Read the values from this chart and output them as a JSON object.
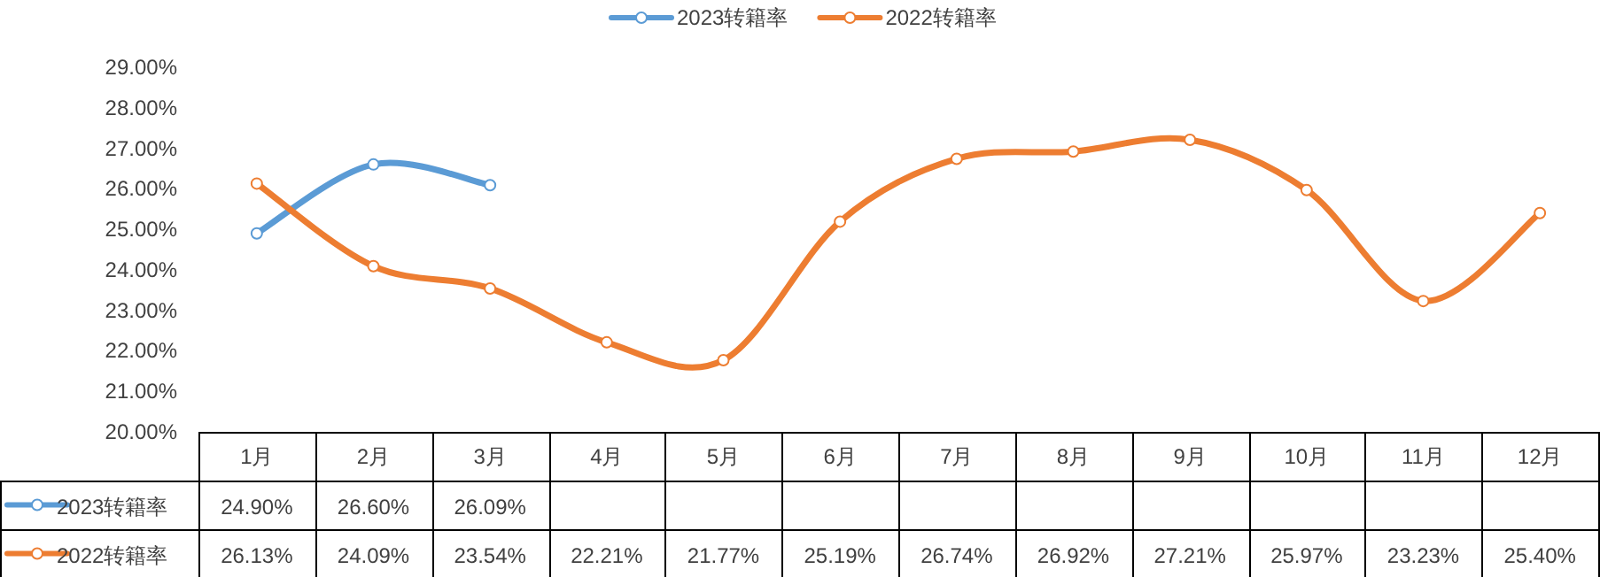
{
  "chart_data": {
    "type": "line",
    "categories": [
      "1月",
      "2月",
      "3月",
      "4月",
      "5月",
      "6月",
      "7月",
      "8月",
      "9月",
      "10月",
      "11月",
      "12月"
    ],
    "series": [
      {
        "name": "2023转籍率",
        "color": "#5b9bd5",
        "values": [
          24.9,
          26.6,
          26.09,
          null,
          null,
          null,
          null,
          null,
          null,
          null,
          null,
          null
        ],
        "value_labels": [
          "24.90%",
          "26.60%",
          "26.09%",
          null,
          null,
          null,
          null,
          null,
          null,
          null,
          null,
          null
        ]
      },
      {
        "name": "2022转籍率",
        "color": "#ed7d31",
        "values": [
          26.13,
          24.09,
          23.54,
          22.21,
          21.77,
          25.19,
          26.74,
          26.92,
          27.21,
          25.97,
          23.23,
          25.4
        ],
        "value_labels": [
          "26.13%",
          "24.09%",
          "23.54%",
          "22.21%",
          "21.77%",
          "25.19%",
          "26.74%",
          "26.92%",
          "27.21%",
          "25.97%",
          "23.23%",
          "25.40%"
        ]
      }
    ],
    "ylim": [
      20,
      29
    ],
    "yticks": [
      {
        "value": 20,
        "label": "20.00%"
      },
      {
        "value": 21,
        "label": "21.00%"
      },
      {
        "value": 22,
        "label": "22.00%"
      },
      {
        "value": 23,
        "label": "23.00%"
      },
      {
        "value": 24,
        "label": "24.00%"
      },
      {
        "value": 25,
        "label": "25.00%"
      },
      {
        "value": 26,
        "label": "26.00%"
      },
      {
        "value": 27,
        "label": "27.00%"
      },
      {
        "value": 28,
        "label": "28.00%"
      },
      {
        "value": 29,
        "label": "29.00%"
      }
    ],
    "legend": "top",
    "marker": "circle",
    "line_style": "solid"
  }
}
